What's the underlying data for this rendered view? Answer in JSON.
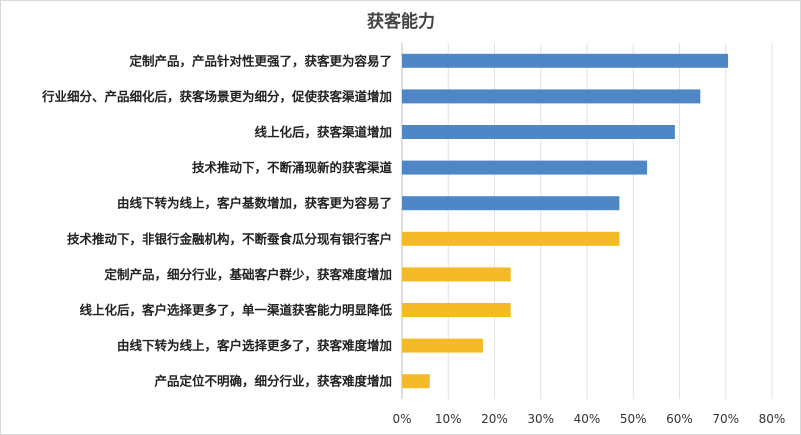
{
  "chart_data": {
    "type": "bar",
    "orientation": "horizontal",
    "title": "获客能力",
    "xlabel": "",
    "ylabel": "",
    "xlim": [
      0,
      80
    ],
    "ticks": [
      "0%",
      "10%",
      "20%",
      "30%",
      "40%",
      "50%",
      "60%",
      "70%",
      "80%"
    ],
    "tick_values": [
      0,
      10,
      20,
      30,
      40,
      50,
      60,
      70,
      80
    ],
    "grid": true,
    "legend": "none",
    "categories": [
      "定制产品，产品针对性更强了，获客更为容易了",
      "行业细分、产品细化后，获客场景更为细分，促使获客渠道增加",
      "线上化后，获客渠道增加",
      "技术推动下，不断涌现新的获客渠道",
      "由线下转为线上，客户基数增加，获客更为容易了",
      "技术推动下，非银行金融机构，不断蚕食瓜分现有银行客户",
      "定制产品，细分行业，基础客户群少，获客难度增加",
      "线上化后，客户选择更多了，单一渠道获客能力明显降低",
      "由线下转为线上，客户选择更多了，获客难度增加",
      "产品定位不明确，细分行业，获客难度增加"
    ],
    "values": [
      70.5,
      64.5,
      59,
      53,
      47,
      47,
      23.5,
      23.5,
      17.5,
      6
    ],
    "bar_colors": [
      "#4f86c6",
      "#4f86c6",
      "#4f86c6",
      "#4f86c6",
      "#4f86c6",
      "#f5ba27",
      "#f5ba27",
      "#f5ba27",
      "#f5ba27",
      "#f5ba27"
    ]
  }
}
